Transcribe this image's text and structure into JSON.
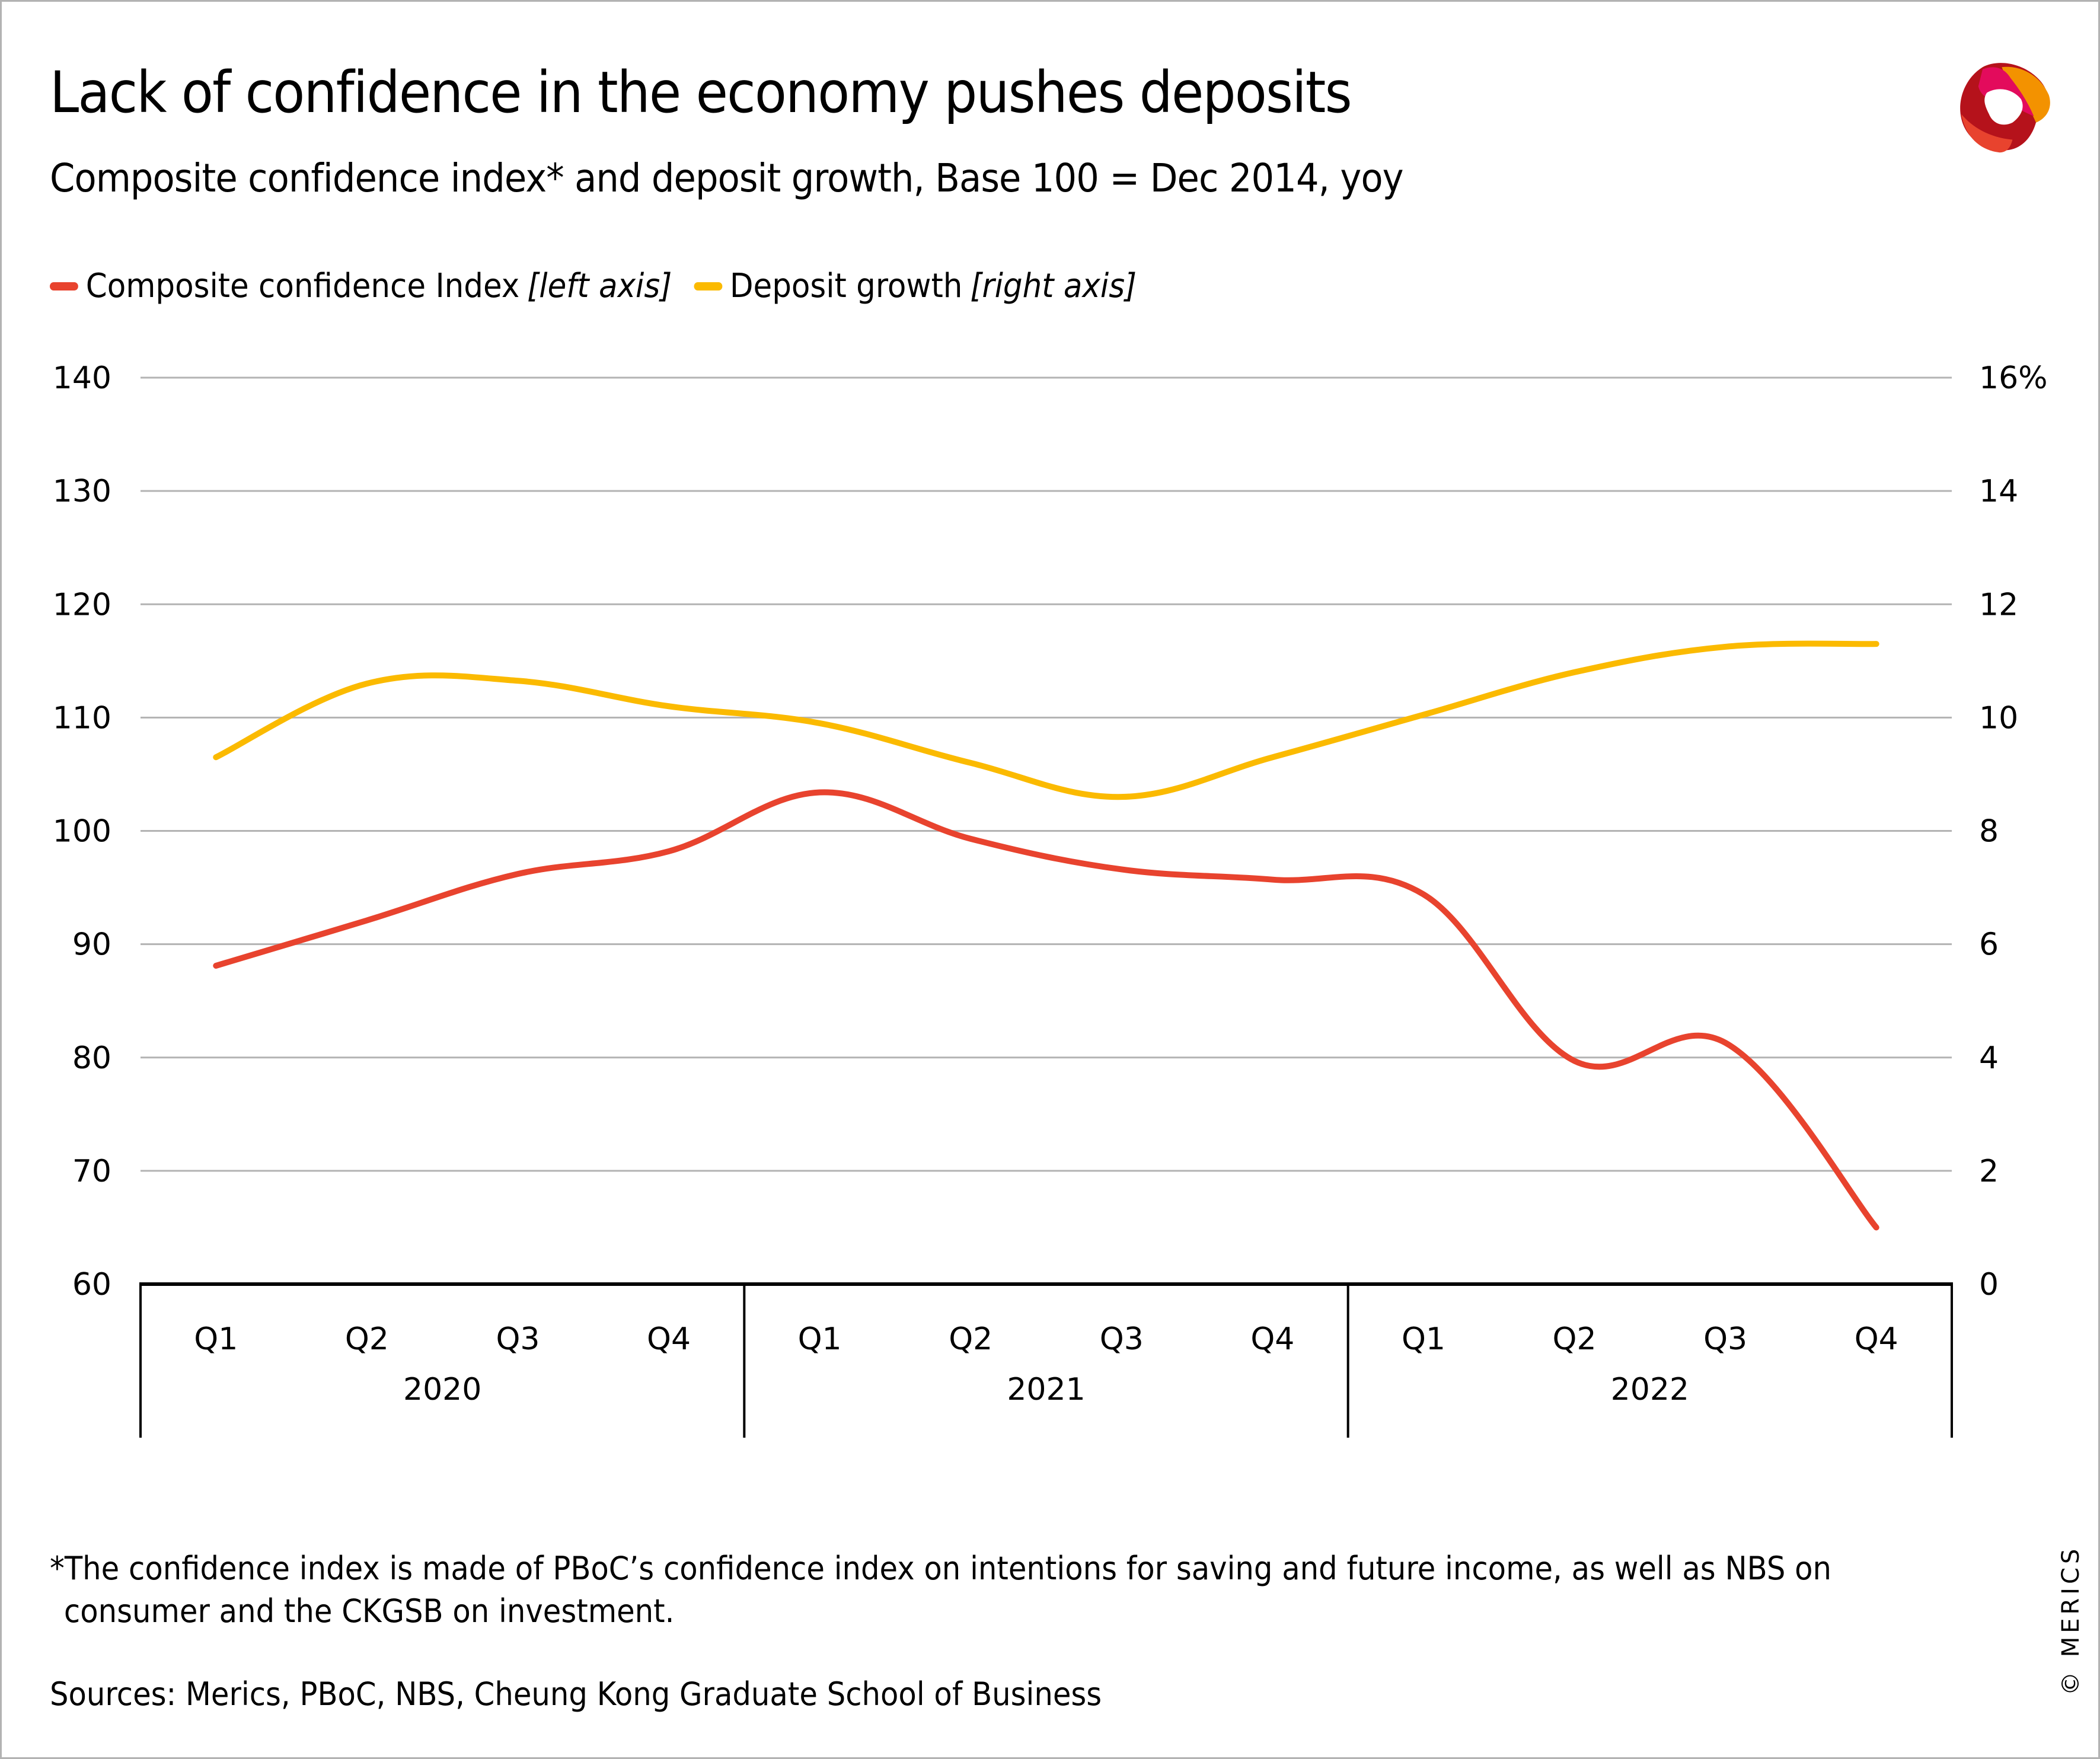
{
  "header": {
    "title": "Lack of confidence in the economy pushes deposits",
    "subtitle": "Composite confidence index* and deposit growth, Base 100 = Dec 2014, yoy"
  },
  "legend": [
    {
      "label": "Composite confidence Index",
      "note": "[left axis]",
      "color": "#e8432e"
    },
    {
      "label": "Deposit growth",
      "note": "[right axis]",
      "color": "#fbba00"
    }
  ],
  "footer": {
    "footnote_line1": "*The confidence index is made of PBoC’s confidence index on intentions for saving and future income, as well as NBS on",
    "footnote_line2": "consumer and the CKGSB on investment.",
    "sources": "Sources: Merics, PBoC, NBS, Cheung Kong Graduate School of Business",
    "copyright": "© MERICS"
  },
  "logo": {
    "icon": "merics-logo-icon",
    "colors": [
      "#b5121b",
      "#e30b5c",
      "#f39200",
      "#e8432e"
    ]
  },
  "chart_data": {
    "type": "line",
    "title": "Lack of confidence in the economy pushes deposits",
    "subtitle": "Composite confidence index* and deposit growth, Base 100 = Dec 2014, yoy",
    "categories": [
      "Q1",
      "Q2",
      "Q3",
      "Q4",
      "Q1",
      "Q2",
      "Q3",
      "Q4",
      "Q1",
      "Q2",
      "Q3",
      "Q4"
    ],
    "category_groups": [
      {
        "label": "2020",
        "count": 4
      },
      {
        "label": "2021",
        "count": 4
      },
      {
        "label": "2022",
        "count": 4
      }
    ],
    "series": [
      {
        "name": "Composite confidence Index",
        "axis": "left",
        "color": "#e8432e",
        "values": [
          88.1,
          92.1,
          96.2,
          98.2,
          103.4,
          99.3,
          96.6,
          95.7,
          94.4,
          79.7,
          81.3,
          65.0
        ]
      },
      {
        "name": "Deposit growth",
        "axis": "right",
        "color": "#fbba00",
        "values": [
          9.3,
          10.6,
          10.65,
          10.2,
          9.9,
          9.2,
          8.6,
          9.3,
          10.05,
          10.8,
          11.25,
          11.3
        ]
      }
    ],
    "left_axis": {
      "min": 60,
      "max": 140,
      "step": 10,
      "tick_labels": [
        "60",
        "70",
        "80",
        "90",
        "100",
        "110",
        "120",
        "130",
        "140"
      ]
    },
    "right_axis": {
      "min": 0,
      "max": 16,
      "step": 2,
      "tick_labels": [
        "0",
        "2",
        "4",
        "6",
        "8",
        "10",
        "12",
        "14",
        "16%"
      ]
    },
    "xlabel": "",
    "ylabel": "",
    "grid": true,
    "smooth": true,
    "legend_position": "top-left"
  }
}
